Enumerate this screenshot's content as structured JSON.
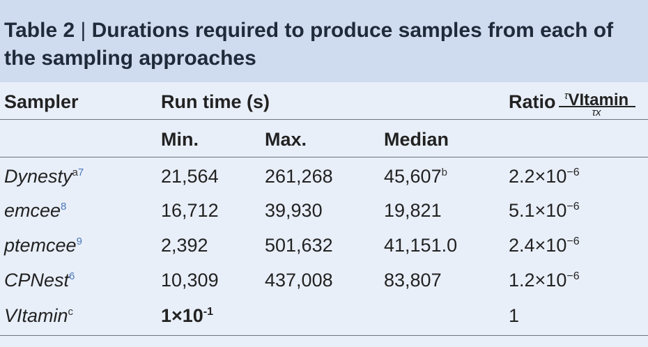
{
  "title": {
    "label": "Table 2",
    "separator": "|",
    "text": "Durations required to produce samples from each of the sampling approaches"
  },
  "headers": {
    "sampler": "Sampler",
    "run_time": "Run time (s)",
    "ratio": "Ratio",
    "ratio_num_tau": "τ",
    "ratio_num": "VItamin",
    "ratio_den": "τx",
    "min": "Min.",
    "max": "Max.",
    "median": "Median"
  },
  "rows": [
    {
      "name": "Dynesty",
      "sup": "a",
      "ref": "7",
      "min": "21,564",
      "max": "261,268",
      "median": "45,607",
      "median_sup": "b",
      "ratio_base": "2.2×10",
      "ratio_exp": "−6"
    },
    {
      "name": "emcee",
      "sup": "",
      "ref": "8",
      "min": "16,712",
      "max": "39,930",
      "median": "19,821",
      "median_sup": "",
      "ratio_base": "5.1×10",
      "ratio_exp": "−6"
    },
    {
      "name": "ptemcee",
      "sup": "",
      "ref": "9",
      "min": "2,392",
      "max": "501,632",
      "median": "41,151.0",
      "median_sup": "",
      "ratio_base": "2.4×10",
      "ratio_exp": "−6"
    },
    {
      "name": "CPNest",
      "sup": "",
      "ref": "6",
      "min": "10,309",
      "max": "437,008",
      "median": "83,807",
      "median_sup": "",
      "ratio_base": "1.2×10",
      "ratio_exp": "−6"
    },
    {
      "name": "VItamin",
      "sup": "c",
      "ref": "",
      "min_base": "1×10",
      "min_exp": "-1",
      "max": "",
      "median": "",
      "median_sup": "",
      "ratio": "1"
    }
  ],
  "colors": {
    "title_bg": "#cfdcef",
    "table_bg": "#e9eff9",
    "ref_link": "#4a77b8"
  }
}
